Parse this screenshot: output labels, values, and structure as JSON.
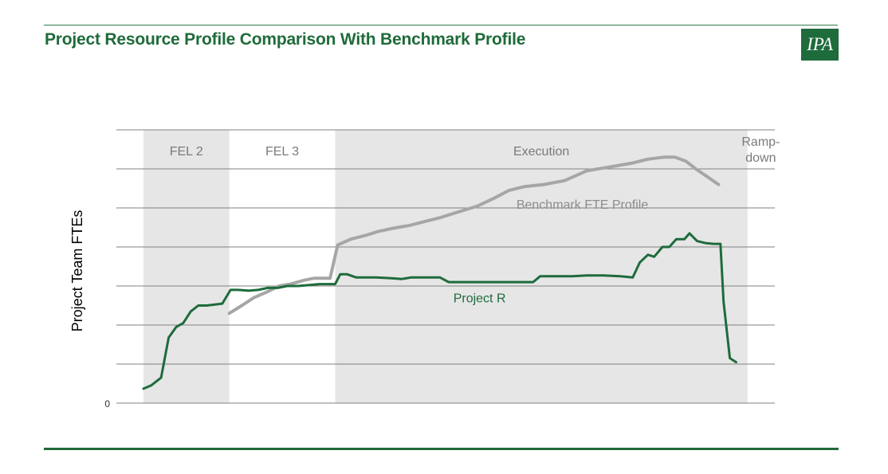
{
  "header": {
    "title": "Project Resource Profile Comparison With Benchmark Profile",
    "logo_text": "IPA"
  },
  "colors": {
    "title": "#1f6b3a",
    "project_line": "#1e6b3c",
    "benchmark_line": "#a6a6a6",
    "phase_band": "#e6e6e6",
    "gridline": "#808080",
    "logo_bg": "#1e6b3c"
  },
  "chart_data": {
    "type": "line",
    "title": "",
    "xlabel": "",
    "ylabel": "Project Team  FTEs",
    "xlim": [
      0,
      100
    ],
    "ylim": [
      0,
      7
    ],
    "y_ticks": [
      {
        "value": 0,
        "label": "0"
      }
    ],
    "grid": true,
    "legend": "inline labels",
    "phases": [
      {
        "name": "FEL 2",
        "start": 0,
        "end": 13.6,
        "shaded": true
      },
      {
        "name": "FEL 3",
        "start": 13.6,
        "end": 30.4,
        "shaded": false
      },
      {
        "name": "Execution",
        "start": 30.4,
        "end": 95.8,
        "shaded": true
      },
      {
        "name": "Ramp-\ndown",
        "start": 95.8,
        "end": 100,
        "shaded": false
      }
    ],
    "series": [
      {
        "name": "Project R",
        "label_at": [
          53.3,
          2.7
        ],
        "points": [
          [
            0,
            0.37
          ],
          [
            1.2,
            0.45
          ],
          [
            2.8,
            0.65
          ],
          [
            4,
            1.68
          ],
          [
            5.2,
            1.95
          ],
          [
            6.3,
            2.05
          ],
          [
            7.5,
            2.35
          ],
          [
            8.7,
            2.5
          ],
          [
            10,
            2.5
          ],
          [
            11.1,
            2.52
          ],
          [
            12.5,
            2.55
          ],
          [
            13.8,
            2.9
          ],
          [
            15,
            2.9
          ],
          [
            16.7,
            2.88
          ],
          [
            18.2,
            2.9
          ],
          [
            19.7,
            2.95
          ],
          [
            21.3,
            2.95
          ],
          [
            22.8,
            3.0
          ],
          [
            24.5,
            3.0
          ],
          [
            26,
            3.02
          ],
          [
            27.9,
            3.05
          ],
          [
            29.6,
            3.05
          ],
          [
            30.4,
            3.05
          ],
          [
            31.2,
            3.3
          ],
          [
            32.3,
            3.3
          ],
          [
            33.7,
            3.22
          ],
          [
            35.1,
            3.22
          ],
          [
            36.9,
            3.22
          ],
          [
            39.3,
            3.2
          ],
          [
            41,
            3.18
          ],
          [
            42.5,
            3.22
          ],
          [
            45.1,
            3.22
          ],
          [
            47,
            3.22
          ],
          [
            48.4,
            3.1
          ],
          [
            51,
            3.1
          ],
          [
            54.2,
            3.1
          ],
          [
            58.5,
            3.1
          ],
          [
            61.8,
            3.1
          ],
          [
            62.9,
            3.25
          ],
          [
            65.4,
            3.25
          ],
          [
            68,
            3.25
          ],
          [
            70.3,
            3.27
          ],
          [
            73,
            3.27
          ],
          [
            75.6,
            3.25
          ],
          [
            77.6,
            3.22
          ],
          [
            78.7,
            3.6
          ],
          [
            80,
            3.8
          ],
          [
            81,
            3.75
          ],
          [
            82.3,
            4.0
          ],
          [
            83.4,
            4.0
          ],
          [
            84.5,
            4.2
          ],
          [
            85.8,
            4.2
          ],
          [
            86.6,
            4.35
          ],
          [
            87.8,
            4.15
          ],
          [
            89.1,
            4.1
          ],
          [
            90.4,
            4.08
          ],
          [
            91.5,
            4.08
          ],
          [
            92,
            2.6
          ],
          [
            93,
            1.15
          ],
          [
            94,
            1.05
          ]
        ]
      },
      {
        "name": "Benchmark FTE Profile",
        "label_at": [
          69.6,
          5.1
        ],
        "points": [
          [
            13.6,
            2.3
          ],
          [
            15.6,
            2.5
          ],
          [
            17.5,
            2.7
          ],
          [
            19.6,
            2.85
          ],
          [
            21.5,
            3.0
          ],
          [
            23.3,
            3.05
          ],
          [
            25.6,
            3.15
          ],
          [
            27.1,
            3.2
          ],
          [
            29.6,
            3.2
          ],
          [
            30.8,
            4.05
          ],
          [
            32.9,
            4.2
          ],
          [
            35.3,
            4.3
          ],
          [
            37.3,
            4.4
          ],
          [
            39.6,
            4.48
          ],
          [
            42.2,
            4.55
          ],
          [
            44.6,
            4.65
          ],
          [
            47,
            4.75
          ],
          [
            50,
            4.9
          ],
          [
            53,
            5.05
          ],
          [
            55.6,
            5.25
          ],
          [
            58,
            5.45
          ],
          [
            60.5,
            5.55
          ],
          [
            63.5,
            5.6
          ],
          [
            66.8,
            5.7
          ],
          [
            70.3,
            5.95
          ],
          [
            73.9,
            6.05
          ],
          [
            77.6,
            6.15
          ],
          [
            80,
            6.25
          ],
          [
            82.5,
            6.3
          ],
          [
            84.3,
            6.3
          ],
          [
            86,
            6.2
          ],
          [
            87.6,
            6.0
          ],
          [
            89.4,
            5.8
          ],
          [
            91.2,
            5.6
          ]
        ]
      }
    ]
  }
}
